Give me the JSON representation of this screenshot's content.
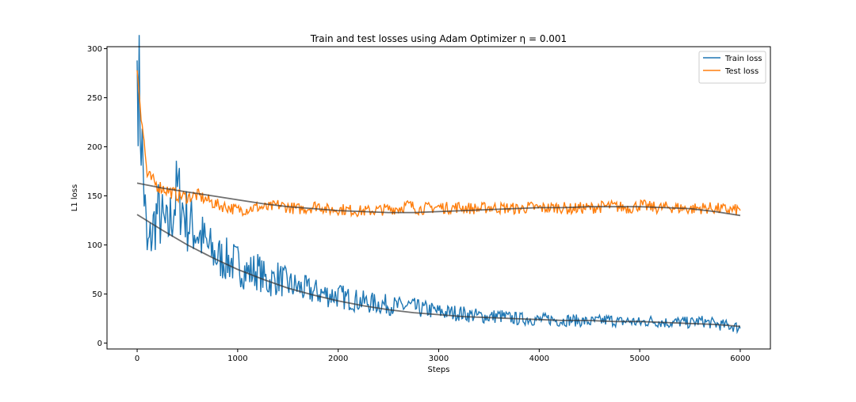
{
  "chart_data": {
    "type": "line",
    "title": "Train and test losses using Adam Optimizer η = 0.001",
    "xlabel": "Steps",
    "ylabel": "L1 loss",
    "xlim": [
      -300,
      6300
    ],
    "ylim": [
      -6,
      302
    ],
    "xticks": [
      0,
      1000,
      2000,
      3000,
      4000,
      5000,
      6000
    ],
    "yticks": [
      0,
      50,
      100,
      150,
      200,
      250,
      300
    ],
    "grid": false,
    "legend_position": "top-right",
    "colors": {
      "Train loss": "#1f77b4",
      "Test loss": "#ff7f0e",
      "trend": "#333333"
    },
    "series": [
      {
        "name": "Train loss",
        "x": [
          0,
          100,
          200,
          300,
          400,
          500,
          600,
          700,
          800,
          900,
          1000,
          1100,
          1200,
          1300,
          1400,
          1500,
          1600,
          1700,
          1800,
          1900,
          2000,
          2100,
          2200,
          2300,
          2400,
          2500,
          2600,
          2700,
          2800,
          2900,
          3000,
          3100,
          3200,
          3300,
          3400,
          3500,
          3600,
          3700,
          3800,
          3900,
          4000,
          4100,
          4200,
          4300,
          4400,
          4500,
          4600,
          4700,
          4800,
          4900,
          5000,
          5100,
          5200,
          5300,
          5400,
          5500,
          5600,
          5700,
          5800,
          5900,
          6000
        ],
        "values": [
          288,
          90,
          130,
          110,
          150,
          120,
          110,
          95,
          85,
          82,
          78,
          70,
          72,
          60,
          65,
          58,
          55,
          52,
          50,
          48,
          47,
          44,
          42,
          40,
          39,
          38,
          36,
          37,
          34,
          33,
          31,
          30,
          30,
          28,
          27,
          26,
          27,
          25,
          24,
          24,
          23,
          24,
          22,
          23,
          22,
          21,
          22,
          23,
          21,
          22,
          20,
          22,
          21,
          20,
          21,
          20,
          22,
          20,
          18,
          17,
          15
        ]
      },
      {
        "name": "Test loss",
        "x": [
          0,
          100,
          200,
          300,
          400,
          500,
          600,
          700,
          800,
          900,
          1000,
          1100,
          1200,
          1300,
          1400,
          1500,
          1600,
          1700,
          1800,
          1900,
          2000,
          2100,
          2200,
          2300,
          2400,
          2500,
          2600,
          2700,
          2800,
          2900,
          3000,
          3100,
          3200,
          3300,
          3400,
          3500,
          3600,
          3700,
          3800,
          3900,
          4000,
          4100,
          4200,
          4300,
          4400,
          4500,
          4600,
          4700,
          4800,
          4900,
          5000,
          5100,
          5200,
          5300,
          5400,
          5500,
          5600,
          5700,
          5800,
          5900,
          6000
        ],
        "values": [
          278,
          170,
          160,
          155,
          150,
          148,
          150,
          145,
          140,
          138,
          135,
          136,
          138,
          137,
          140,
          138,
          136,
          137,
          140,
          135,
          136,
          135,
          134,
          134,
          135,
          136,
          137,
          140,
          136,
          137,
          138,
          137,
          138,
          137,
          136,
          138,
          137,
          137,
          136,
          138,
          137,
          137,
          138,
          136,
          137,
          137,
          138,
          139,
          138,
          137,
          140,
          138,
          137,
          138,
          137,
          136,
          137,
          137,
          136,
          135,
          135
        ]
      },
      {
        "name": "",
        "x": [
          0,
          250,
          500,
          750,
          1000,
          1250,
          1500,
          1750,
          2000,
          2250,
          2500,
          2750,
          3000,
          3250,
          3500,
          3750,
          4000,
          4250,
          4500,
          4750,
          5000,
          5250,
          5500,
          5750,
          6000
        ],
        "values": [
          163,
          158,
          154,
          150,
          146,
          142,
          139,
          137,
          135,
          134,
          133,
          133,
          134,
          135,
          136,
          137,
          138,
          138,
          139,
          139,
          139,
          138,
          137,
          134,
          130
        ]
      },
      {
        "name": "",
        "x": [
          0,
          250,
          500,
          750,
          1000,
          1250,
          1500,
          1750,
          2000,
          2250,
          2500,
          2750,
          3000,
          3250,
          3500,
          3750,
          4000,
          4250,
          4500,
          4750,
          5000,
          5250,
          5500,
          5750,
          6000
        ],
        "values": [
          131,
          115,
          100,
          87,
          75,
          65,
          56,
          49,
          43,
          38,
          34,
          31,
          29,
          27,
          26,
          25,
          24,
          23,
          23,
          22,
          22,
          21,
          20,
          19,
          17
        ]
      }
    ]
  }
}
